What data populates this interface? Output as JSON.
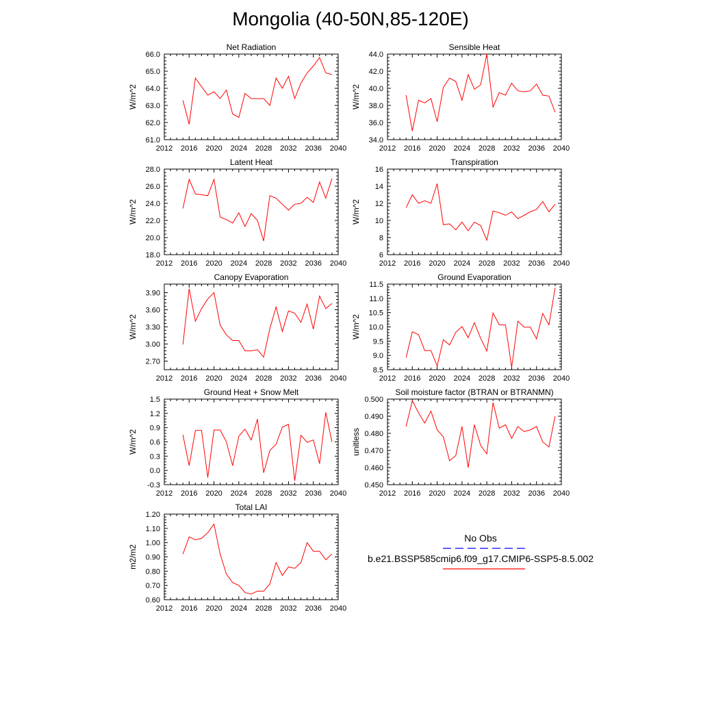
{
  "title": "Mongolia (40-50N,85-120E)",
  "legend": {
    "obs_label": "No Obs",
    "obs_color": "#0000ff",
    "model_label": "b.e21.BSSP585cmip6.f09_g17.CMIP6-SSP5-8.5.002",
    "model_color": "#ff0000"
  },
  "chart_data": [
    {
      "type": "line",
      "title": "Net Radiation",
      "ylabel": "W/m^2",
      "xlim": [
        2012,
        2040
      ],
      "ylim": [
        61.0,
        66.0
      ],
      "xticks": [
        "2012",
        "2016",
        "2020",
        "2024",
        "2028",
        "2032",
        "2036",
        "2040"
      ],
      "yticks": [
        "61.0",
        "62.0",
        "63.0",
        "64.0",
        "65.0",
        "66.0"
      ],
      "x": [
        2015,
        2016,
        2017,
        2018,
        2019,
        2020,
        2021,
        2022,
        2023,
        2024,
        2025,
        2026,
        2027,
        2028,
        2029,
        2030,
        2031,
        2032,
        2033,
        2034,
        2035,
        2036,
        2037,
        2038,
        2039
      ],
      "y": [
        63.3,
        61.9,
        64.6,
        64.1,
        63.6,
        63.8,
        63.4,
        63.9,
        62.5,
        62.3,
        63.7,
        63.4,
        63.4,
        63.4,
        63.0,
        64.6,
        64.0,
        64.7,
        63.4,
        64.3,
        64.9,
        65.3,
        65.8,
        64.9,
        64.8
      ]
    },
    {
      "type": "line",
      "title": "Sensible Heat",
      "ylabel": "W/m^2",
      "xlim": [
        2012,
        2040
      ],
      "ylim": [
        34.0,
        44.0
      ],
      "xticks": [
        "2012",
        "2016",
        "2020",
        "2024",
        "2028",
        "2032",
        "2036",
        "2040"
      ],
      "yticks": [
        "34.0",
        "36.0",
        "38.0",
        "40.0",
        "42.0",
        "44.0"
      ],
      "x": [
        2015,
        2016,
        2017,
        2018,
        2019,
        2020,
        2021,
        2022,
        2023,
        2024,
        2025,
        2026,
        2027,
        2028,
        2029,
        2030,
        2031,
        2032,
        2033,
        2034,
        2035,
        2036,
        2037,
        2038,
        2039
      ],
      "y": [
        39.2,
        35.0,
        38.6,
        38.3,
        38.8,
        36.1,
        40.1,
        41.2,
        40.8,
        38.6,
        41.6,
        39.9,
        40.4,
        44.0,
        37.8,
        39.5,
        39.2,
        40.6,
        39.7,
        39.6,
        39.7,
        40.5,
        39.2,
        39.1,
        37.2
      ]
    },
    {
      "type": "line",
      "title": "Latent Heat",
      "ylabel": "W/m^2",
      "xlim": [
        2012,
        2040
      ],
      "ylim": [
        18.0,
        28.0
      ],
      "xticks": [
        "2012",
        "2016",
        "2020",
        "2024",
        "2028",
        "2032",
        "2036",
        "2040"
      ],
      "yticks": [
        "18.0",
        "20.0",
        "22.0",
        "24.0",
        "26.0",
        "28.0"
      ],
      "x": [
        2015,
        2016,
        2017,
        2018,
        2019,
        2020,
        2021,
        2022,
        2023,
        2024,
        2025,
        2026,
        2027,
        2028,
        2029,
        2030,
        2031,
        2032,
        2033,
        2034,
        2035,
        2036,
        2037,
        2038,
        2039
      ],
      "y": [
        23.4,
        26.8,
        25.1,
        25.0,
        24.9,
        26.8,
        22.4,
        22.1,
        21.7,
        22.9,
        21.3,
        22.8,
        22.0,
        19.6,
        24.9,
        24.6,
        23.9,
        23.2,
        23.9,
        24.0,
        24.7,
        24.1,
        26.5,
        24.6,
        26.9
      ]
    },
    {
      "type": "line",
      "title": "Transpiration",
      "ylabel": "W/m^2",
      "xlim": [
        2012,
        2040
      ],
      "ylim": [
        6,
        16
      ],
      "xticks": [
        "2012",
        "2016",
        "2020",
        "2024",
        "2028",
        "2032",
        "2036",
        "2040"
      ],
      "yticks": [
        "6",
        "8",
        "10",
        "12",
        "14",
        "16"
      ],
      "x": [
        2015,
        2016,
        2017,
        2018,
        2019,
        2020,
        2021,
        2022,
        2023,
        2024,
        2025,
        2026,
        2027,
        2028,
        2029,
        2030,
        2031,
        2032,
        2033,
        2034,
        2035,
        2036,
        2037,
        2038,
        2039
      ],
      "y": [
        11.5,
        13.0,
        12.0,
        12.3,
        12.0,
        14.3,
        9.5,
        9.6,
        8.9,
        9.8,
        8.8,
        9.8,
        9.4,
        7.7,
        11.1,
        10.9,
        10.6,
        11.0,
        10.2,
        10.6,
        11.0,
        11.3,
        12.2,
        11.0,
        11.9
      ]
    },
    {
      "type": "line",
      "title": "Canopy Evaporation",
      "ylabel": "W/m^2",
      "xlim": [
        2012,
        2040
      ],
      "ylim": [
        2.55,
        4.05
      ],
      "xticks": [
        "2012",
        "2016",
        "2020",
        "2024",
        "2028",
        "2032",
        "2036",
        "2040"
      ],
      "yticks": [
        "2.70",
        "3.00",
        "3.30",
        "3.60",
        "3.90"
      ],
      "ytick_values": [
        2.7,
        3.0,
        3.3,
        3.6,
        3.9
      ],
      "x": [
        2015,
        2016,
        2017,
        2018,
        2019,
        2020,
        2021,
        2022,
        2023,
        2024,
        2025,
        2026,
        2027,
        2028,
        2029,
        2030,
        2031,
        2032,
        2033,
        2034,
        2035,
        2036,
        2037,
        2038,
        2039
      ],
      "y": [
        2.99,
        3.97,
        3.4,
        3.62,
        3.79,
        3.9,
        3.33,
        3.16,
        3.06,
        3.06,
        2.88,
        2.88,
        2.9,
        2.77,
        3.27,
        3.65,
        3.22,
        3.58,
        3.54,
        3.38,
        3.7,
        3.26,
        3.84,
        3.62,
        3.71
      ]
    },
    {
      "type": "line",
      "title": "Ground Evaporation",
      "ylabel": "W/m^2",
      "xlim": [
        2012,
        2040
      ],
      "ylim": [
        8.5,
        11.5
      ],
      "xticks": [
        "2012",
        "2016",
        "2020",
        "2024",
        "2028",
        "2032",
        "2036",
        "2040"
      ],
      "yticks": [
        "8.5",
        "9.0",
        "9.5",
        "10.0",
        "10.5",
        "11.0",
        "11.5"
      ],
      "x": [
        2015,
        2016,
        2017,
        2018,
        2019,
        2020,
        2021,
        2022,
        2023,
        2024,
        2025,
        2026,
        2027,
        2028,
        2029,
        2030,
        2031,
        2032,
        2033,
        2034,
        2035,
        2036,
        2037,
        2038,
        2039
      ],
      "y": [
        8.92,
        9.83,
        9.73,
        9.17,
        9.17,
        8.63,
        9.55,
        9.37,
        9.81,
        10.01,
        9.62,
        10.15,
        9.6,
        9.15,
        10.49,
        10.07,
        10.07,
        8.58,
        10.2,
        9.99,
        9.99,
        9.58,
        10.47,
        10.07,
        11.37
      ]
    },
    {
      "type": "line",
      "title": "Ground Heat + Snow Melt",
      "ylabel": "W/m^2",
      "xlim": [
        2012,
        2040
      ],
      "ylim": [
        -0.3,
        1.5
      ],
      "xticks": [
        "2012",
        "2016",
        "2020",
        "2024",
        "2028",
        "2032",
        "2036",
        "2040"
      ],
      "yticks": [
        "-0.3",
        "0.0",
        "0.3",
        "0.6",
        "0.9",
        "1.2",
        "1.5"
      ],
      "x": [
        2015,
        2016,
        2017,
        2018,
        2019,
        2020,
        2021,
        2022,
        2023,
        2024,
        2025,
        2026,
        2027,
        2028,
        2029,
        2030,
        2031,
        2032,
        2033,
        2034,
        2035,
        2036,
        2037,
        2038,
        2039
      ],
      "y": [
        0.75,
        0.1,
        0.84,
        0.84,
        -0.15,
        0.85,
        0.85,
        0.6,
        0.1,
        0.72,
        0.87,
        0.64,
        1.08,
        -0.05,
        0.42,
        0.55,
        0.91,
        0.97,
        -0.22,
        0.74,
        0.59,
        0.64,
        0.14,
        1.22,
        0.6
      ]
    },
    {
      "type": "line",
      "title": "Soil moisture factor (BTRAN or BTRANMN)",
      "ylabel": "unitless",
      "xlim": [
        2012,
        2040
      ],
      "ylim": [
        0.45,
        0.5
      ],
      "xticks": [
        "2012",
        "2016",
        "2020",
        "2024",
        "2028",
        "2032",
        "2036",
        "2040"
      ],
      "yticks": [
        "0.450",
        "0.460",
        "0.470",
        "0.480",
        "0.490",
        "0.500"
      ],
      "x": [
        2015,
        2016,
        2017,
        2018,
        2019,
        2020,
        2021,
        2022,
        2023,
        2024,
        2025,
        2026,
        2027,
        2028,
        2029,
        2030,
        2031,
        2032,
        2033,
        2034,
        2035,
        2036,
        2037,
        2038,
        2039
      ],
      "y": [
        0.484,
        0.499,
        0.492,
        0.486,
        0.493,
        0.482,
        0.478,
        0.464,
        0.467,
        0.484,
        0.46,
        0.485,
        0.473,
        0.468,
        0.498,
        0.483,
        0.485,
        0.477,
        0.484,
        0.481,
        0.482,
        0.484,
        0.475,
        0.472,
        0.49
      ]
    },
    {
      "type": "line",
      "title": "Total LAI",
      "ylabel": "m2/m2",
      "xlim": [
        2012,
        2040
      ],
      "ylim": [
        0.6,
        1.2
      ],
      "xticks": [
        "2012",
        "2016",
        "2020",
        "2024",
        "2028",
        "2032",
        "2036",
        "2040"
      ],
      "yticks": [
        "0.60",
        "0.70",
        "0.80",
        "0.90",
        "1.00",
        "1.10",
        "1.20"
      ],
      "x": [
        2015,
        2016,
        2017,
        2018,
        2019,
        2020,
        2021,
        2022,
        2023,
        2024,
        2025,
        2026,
        2027,
        2028,
        2029,
        2030,
        2031,
        2032,
        2033,
        2034,
        2035,
        2036,
        2037,
        2038,
        2039
      ],
      "y": [
        0.92,
        1.04,
        1.02,
        1.03,
        1.07,
        1.13,
        0.92,
        0.78,
        0.72,
        0.7,
        0.65,
        0.64,
        0.66,
        0.66,
        0.71,
        0.86,
        0.77,
        0.83,
        0.82,
        0.86,
        1.0,
        0.94,
        0.94,
        0.88,
        0.92
      ]
    }
  ]
}
